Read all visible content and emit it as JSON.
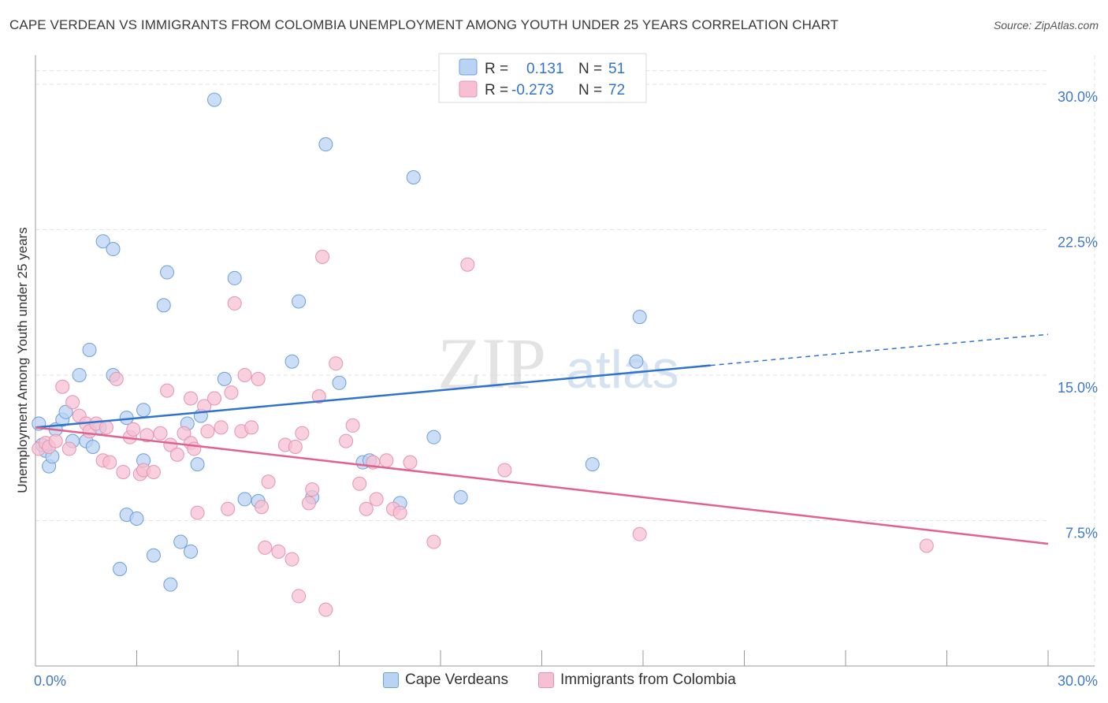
{
  "header": {
    "title": "CAPE VERDEAN VS IMMIGRANTS FROM COLOMBIA UNEMPLOYMENT AMONG YOUTH UNDER 25 YEARS CORRELATION CHART",
    "source": "Source: ZipAtlas.com"
  },
  "colors": {
    "blue_fill": "#b9d3f3",
    "blue_stroke": "#6c9fdc",
    "blue_line": "#2f73cf",
    "pink_fill": "#f7c0d2",
    "pink_stroke": "#e693b1",
    "pink_line": "#e1628d",
    "axis_label": "#3f78c8",
    "grid": "#e2e2e2"
  },
  "legend": {
    "rows": [
      {
        "r_label": "R =",
        "r_value": "0.131",
        "n_label": "N =",
        "n_value": "51"
      },
      {
        "r_label": "R =",
        "r_value": "-0.273",
        "n_label": "N =",
        "n_value": "72"
      }
    ]
  },
  "bottom_legend": {
    "items": [
      "Cape Verdeans",
      "Immigrants from Colombia"
    ]
  },
  "watermark": {
    "zip": "ZIP",
    "atlas": "atlas"
  },
  "chart_data": {
    "type": "scatter",
    "title": "CAPE VERDEAN VS IMMIGRANTS FROM COLOMBIA UNEMPLOYMENT AMONG YOUTH UNDER 25 YEARS CORRELATION CHART",
    "xlabel": "",
    "ylabel": "Unemployment Among Youth under 25 years",
    "xlim": [
      0,
      30
    ],
    "ylim": [
      0,
      31.5
    ],
    "x_tick_labels": [
      "0.0%",
      "30.0%"
    ],
    "y_tick_values": [
      7.5,
      15.0,
      22.5,
      30.0
    ],
    "y_tick_labels": [
      "7.5%",
      "15.0%",
      "22.5%",
      "30.0%"
    ],
    "grid": true,
    "legend_position": "top-center",
    "series": [
      {
        "name": "Cape Verdeans",
        "r": 0.131,
        "n": 51,
        "trend": {
          "x0": 0,
          "y0": 12.3,
          "x1": 20.0,
          "y1": 15.5,
          "dashed_to_x": 30,
          "dashed_to_y": 17.1
        },
        "points": [
          [
            0.1,
            12.5
          ],
          [
            0.3,
            11.1
          ],
          [
            0.4,
            10.3
          ],
          [
            0.5,
            10.8
          ],
          [
            0.6,
            12.2
          ],
          [
            0.8,
            12.7
          ],
          [
            0.9,
            13.1
          ],
          [
            1.1,
            11.6
          ],
          [
            1.3,
            15.0
          ],
          [
            1.5,
            11.6
          ],
          [
            1.6,
            16.3
          ],
          [
            1.7,
            11.3
          ],
          [
            1.9,
            12.3
          ],
          [
            2.0,
            21.9
          ],
          [
            2.3,
            15.0
          ],
          [
            2.3,
            21.5
          ],
          [
            2.5,
            5.0
          ],
          [
            2.7,
            12.8
          ],
          [
            2.7,
            7.8
          ],
          [
            3.0,
            7.6
          ],
          [
            3.2,
            13.2
          ],
          [
            3.2,
            10.6
          ],
          [
            3.5,
            5.7
          ],
          [
            3.8,
            18.6
          ],
          [
            3.9,
            20.3
          ],
          [
            4.0,
            4.2
          ],
          [
            4.3,
            6.4
          ],
          [
            4.5,
            12.5
          ],
          [
            4.6,
            5.9
          ],
          [
            4.8,
            10.4
          ],
          [
            4.9,
            12.9
          ],
          [
            5.3,
            29.2
          ],
          [
            5.6,
            14.8
          ],
          [
            5.9,
            20.0
          ],
          [
            6.2,
            8.6
          ],
          [
            6.6,
            8.5
          ],
          [
            7.6,
            15.7
          ],
          [
            7.8,
            18.8
          ],
          [
            8.2,
            8.7
          ],
          [
            8.6,
            26.9
          ],
          [
            9.0,
            14.6
          ],
          [
            9.7,
            10.5
          ],
          [
            9.9,
            10.6
          ],
          [
            10.8,
            8.4
          ],
          [
            11.2,
            25.2
          ],
          [
            11.8,
            11.8
          ],
          [
            12.6,
            8.7
          ],
          [
            16.5,
            10.4
          ],
          [
            17.8,
            15.7
          ],
          [
            17.9,
            18.0
          ],
          [
            0.2,
            11.4
          ]
        ]
      },
      {
        "name": "Immigrants from Colombia",
        "r": -0.273,
        "n": 72,
        "trend": {
          "x0": 0,
          "y0": 12.3,
          "x1": 30,
          "y1": 6.3
        },
        "points": [
          [
            0.1,
            11.2
          ],
          [
            0.3,
            11.5
          ],
          [
            0.4,
            11.3
          ],
          [
            0.6,
            11.6
          ],
          [
            0.8,
            14.4
          ],
          [
            1.0,
            11.2
          ],
          [
            1.1,
            13.6
          ],
          [
            1.3,
            12.9
          ],
          [
            1.5,
            12.5
          ],
          [
            1.6,
            12.1
          ],
          [
            1.8,
            12.5
          ],
          [
            2.0,
            10.6
          ],
          [
            2.2,
            10.5
          ],
          [
            2.4,
            14.8
          ],
          [
            2.6,
            10.0
          ],
          [
            2.8,
            11.8
          ],
          [
            2.9,
            12.2
          ],
          [
            3.1,
            9.9
          ],
          [
            3.2,
            10.1
          ],
          [
            3.3,
            11.9
          ],
          [
            3.5,
            10.0
          ],
          [
            3.7,
            12.0
          ],
          [
            3.9,
            14.2
          ],
          [
            4.0,
            11.4
          ],
          [
            4.2,
            10.9
          ],
          [
            4.4,
            12.0
          ],
          [
            4.6,
            11.5
          ],
          [
            4.7,
            11.2
          ],
          [
            4.8,
            7.9
          ],
          [
            5.0,
            13.4
          ],
          [
            5.1,
            12.1
          ],
          [
            5.3,
            13.8
          ],
          [
            5.5,
            12.3
          ],
          [
            5.7,
            8.1
          ],
          [
            5.8,
            14.1
          ],
          [
            5.9,
            18.7
          ],
          [
            6.1,
            12.1
          ],
          [
            6.2,
            15.0
          ],
          [
            6.4,
            12.3
          ],
          [
            6.6,
            14.8
          ],
          [
            6.7,
            8.2
          ],
          [
            6.8,
            6.1
          ],
          [
            7.2,
            5.9
          ],
          [
            7.4,
            11.4
          ],
          [
            7.6,
            5.5
          ],
          [
            7.7,
            11.3
          ],
          [
            7.8,
            3.6
          ],
          [
            7.9,
            12.0
          ],
          [
            8.1,
            8.4
          ],
          [
            8.2,
            9.1
          ],
          [
            8.4,
            13.9
          ],
          [
            8.5,
            21.1
          ],
          [
            8.6,
            2.9
          ],
          [
            8.9,
            15.6
          ],
          [
            9.2,
            11.6
          ],
          [
            9.4,
            12.4
          ],
          [
            9.6,
            9.4
          ],
          [
            9.8,
            8.1
          ],
          [
            10.0,
            10.5
          ],
          [
            10.1,
            8.6
          ],
          [
            10.4,
            10.6
          ],
          [
            10.6,
            8.1
          ],
          [
            10.8,
            7.9
          ],
          [
            11.1,
            10.5
          ],
          [
            11.8,
            6.4
          ],
          [
            12.8,
            20.7
          ],
          [
            13.9,
            10.1
          ],
          [
            17.9,
            6.8
          ],
          [
            26.4,
            6.2
          ],
          [
            2.1,
            12.3
          ],
          [
            4.6,
            13.8
          ],
          [
            6.9,
            9.5
          ]
        ]
      }
    ]
  }
}
